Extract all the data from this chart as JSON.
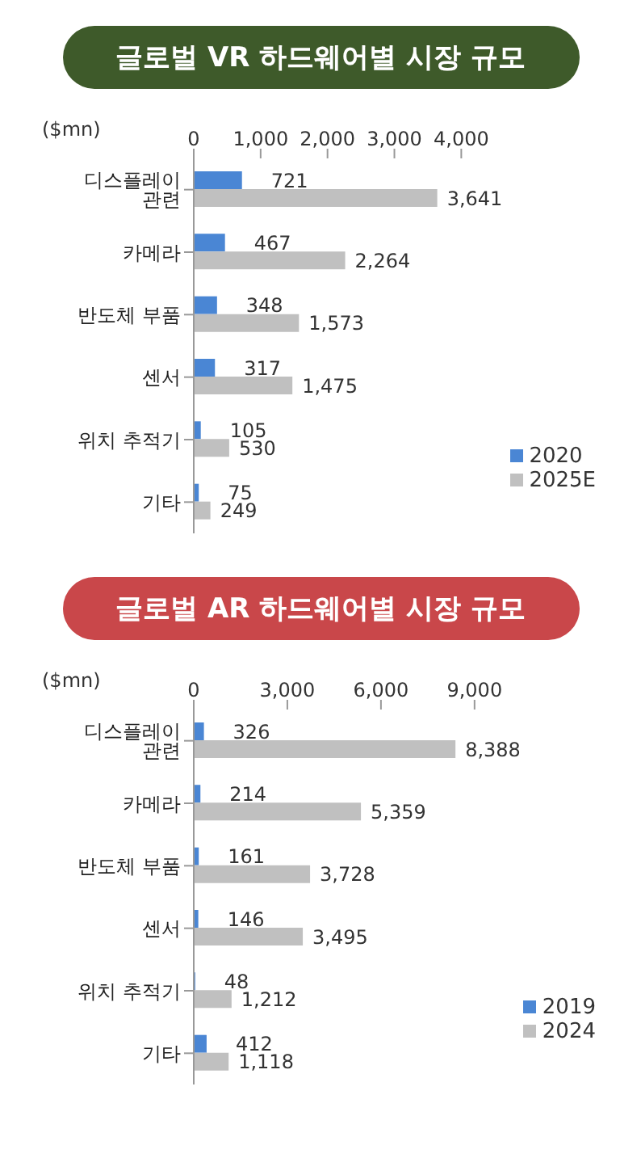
{
  "chart_data": [
    {
      "type": "bar",
      "orientation": "horizontal",
      "title": "글로벌 VR 하드웨어별 시장 규모",
      "xlabel": "($mn)",
      "categories": [
        "디스플레이 관련",
        "카메라",
        "반도체 부품",
        "센서",
        "위치 추적기",
        "기타"
      ],
      "series": [
        {
          "name": "2020",
          "color": "#4a86d4",
          "values": [
            721,
            467,
            348,
            317,
            105,
            75
          ],
          "value_labels": [
            "721",
            "467",
            "348",
            "317",
            "105",
            "75"
          ]
        },
        {
          "name": "2025E",
          "color": "#c0c0c0",
          "values": [
            3641,
            2264,
            1573,
            1475,
            530,
            249
          ],
          "value_labels": [
            "3,641",
            "2,264",
            "1,573",
            "1,475",
            "530",
            "249"
          ]
        }
      ],
      "xlim": [
        0,
        4000
      ],
      "xticks": [
        {
          "value": 0,
          "label": "0"
        },
        {
          "value": 1000,
          "label": "1,000"
        },
        {
          "value": 2000,
          "label": "2,000"
        },
        {
          "value": 3000,
          "label": "3,000"
        },
        {
          "value": 4000,
          "label": "4,000"
        }
      ],
      "legend": "bottom right"
    },
    {
      "type": "bar",
      "orientation": "horizontal",
      "title": "글로벌 AR 하드웨어별 시장 규모",
      "xlabel": "($mn)",
      "categories": [
        "디스플레이 관련",
        "카메라",
        "반도체 부품",
        "센서",
        "위치 추적기",
        "기타"
      ],
      "series": [
        {
          "name": "2019",
          "color": "#4a86d4",
          "values": [
            326,
            214,
            161,
            146,
            48,
            412
          ],
          "value_labels": [
            "326",
            "214",
            "161",
            "146",
            "48",
            "412"
          ]
        },
        {
          "name": "2024",
          "color": "#c0c0c0",
          "values": [
            8388,
            5359,
            3728,
            3495,
            1212,
            1118
          ],
          "value_labels": [
            "8,388",
            "5,359",
            "3,728",
            "3,495",
            "1,212",
            "1,118"
          ]
        }
      ],
      "xlim": [
        0,
        9000
      ],
      "xticks": [
        {
          "value": 0,
          "label": "0"
        },
        {
          "value": 3000,
          "label": "3,000"
        },
        {
          "value": 6000,
          "label": "6,000"
        },
        {
          "value": 9000,
          "label": "9,000"
        }
      ],
      "legend": "bottom right"
    }
  ]
}
